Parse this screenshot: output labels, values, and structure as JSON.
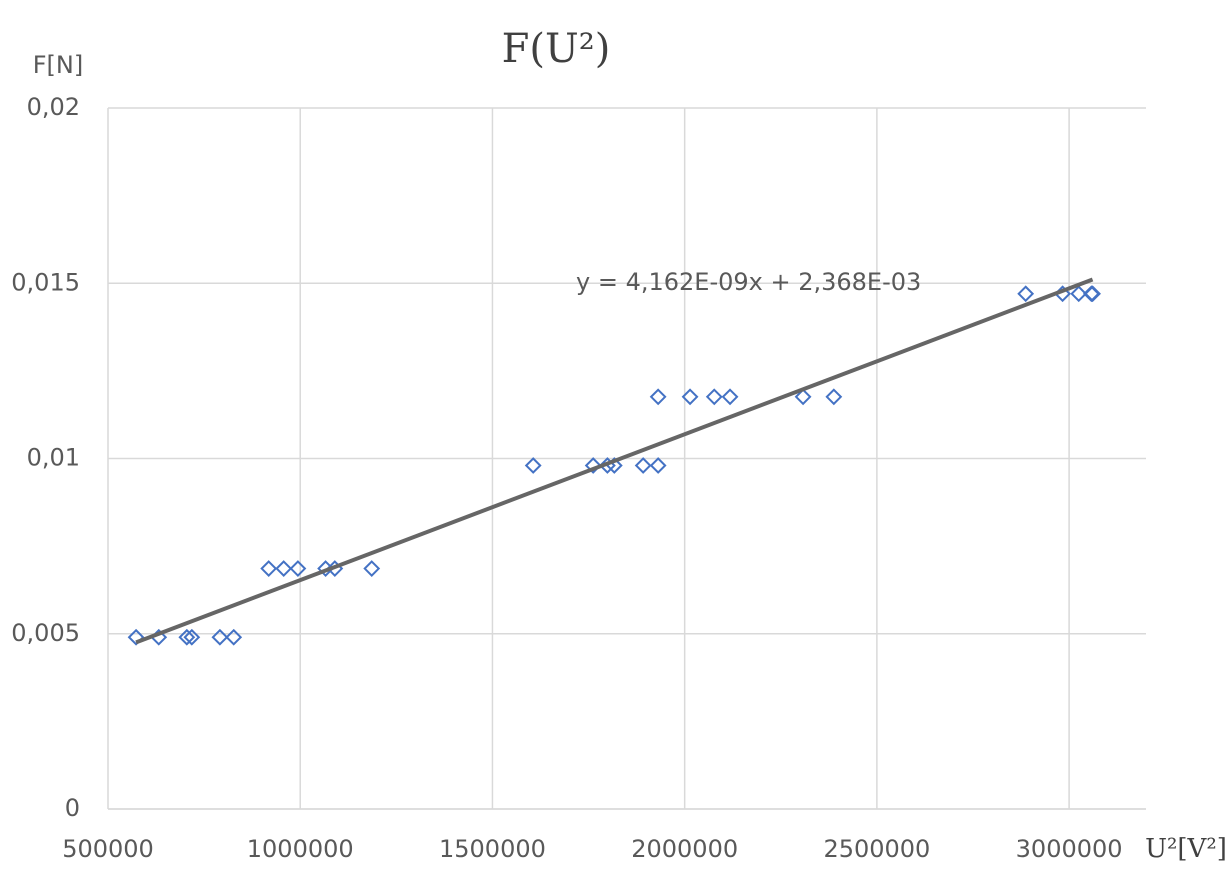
{
  "chart_data": {
    "type": "scatter",
    "title": "F(U²)",
    "x_label": "U²[V²]",
    "y_label": "F[N]",
    "series": [
      {
        "color": "#4472c4",
        "x": [
          573000,
          632000,
          705000,
          718000,
          791000,
          827000,
          918000,
          957000,
          994000,
          1066000,
          1090000,
          1186000,
          1606000,
          1762000,
          1799000,
          1817000,
          1892000,
          1931000,
          1931000,
          2014000,
          2077000,
          2118000,
          2308000,
          2388000,
          2887000,
          2983000,
          3025000,
          3058000,
          3061000
        ],
        "values": [
          0.0049,
          0.0049,
          0.0049,
          0.0049,
          0.0049,
          0.0049,
          0.00686,
          0.00686,
          0.00686,
          0.00686,
          0.00686,
          0.00686,
          0.0098,
          0.0098,
          0.0098,
          0.0098,
          0.0098,
          0.0098,
          0.01176,
          0.01176,
          0.01176,
          0.01176,
          0.01176,
          0.01176,
          0.0147,
          0.0147,
          0.0147,
          0.0147,
          0.0147
        ]
      }
    ],
    "trendline": {
      "slope": 4.162e-09,
      "intercept": 0.002368,
      "label": "y = 4,162E-09x + 2,368E-03",
      "color": "#666666"
    },
    "xlim": [
      500000,
      3200000
    ],
    "xticks": [
      500000,
      1000000,
      1500000,
      2000000,
      2500000,
      3000000
    ],
    "ylim": [
      0,
      0.02
    ],
    "yticks": [
      0,
      {
        "value": 0.005,
        "label": "0,005"
      },
      {
        "value": 0.01,
        "label": "0,01"
      },
      {
        "value": 0.015,
        "label": "0,015"
      },
      {
        "value": 0.02,
        "label": "0,02"
      }
    ],
    "grid": true
  }
}
